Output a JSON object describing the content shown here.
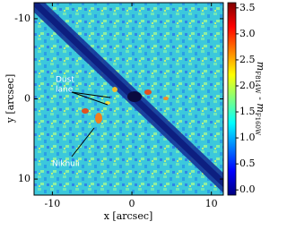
{
  "chart_data": {
    "type": "image",
    "x_label": "x [arcsec]",
    "y_label": "y [arcsec]",
    "xlim": [
      -12.3,
      11.5
    ],
    "xticks": [
      -10,
      0,
      10
    ],
    "ylim": [
      -12,
      12
    ],
    "yticks": [
      -10,
      0,
      10
    ],
    "y_inverted": true,
    "colormap": "jet",
    "clim": [
      -0.1,
      3.6
    ],
    "cticks": [
      {
        "value": 0,
        "label": "0.0"
      },
      0.5,
      {
        "value": 1,
        "label": "1.0"
      },
      1.5,
      {
        "value": 2,
        "label": "2.0"
      },
      2.5,
      {
        "value": 3,
        "label": "3.0"
      },
      3.5
    ],
    "colorbar_label": {
      "m1": "m",
      "sub1": "F814W",
      "sep": " - ",
      "m2": "m",
      "sub2": "F160W"
    },
    "annotations": [
      "Dust",
      "lane",
      "Nikhuli"
    ]
  }
}
